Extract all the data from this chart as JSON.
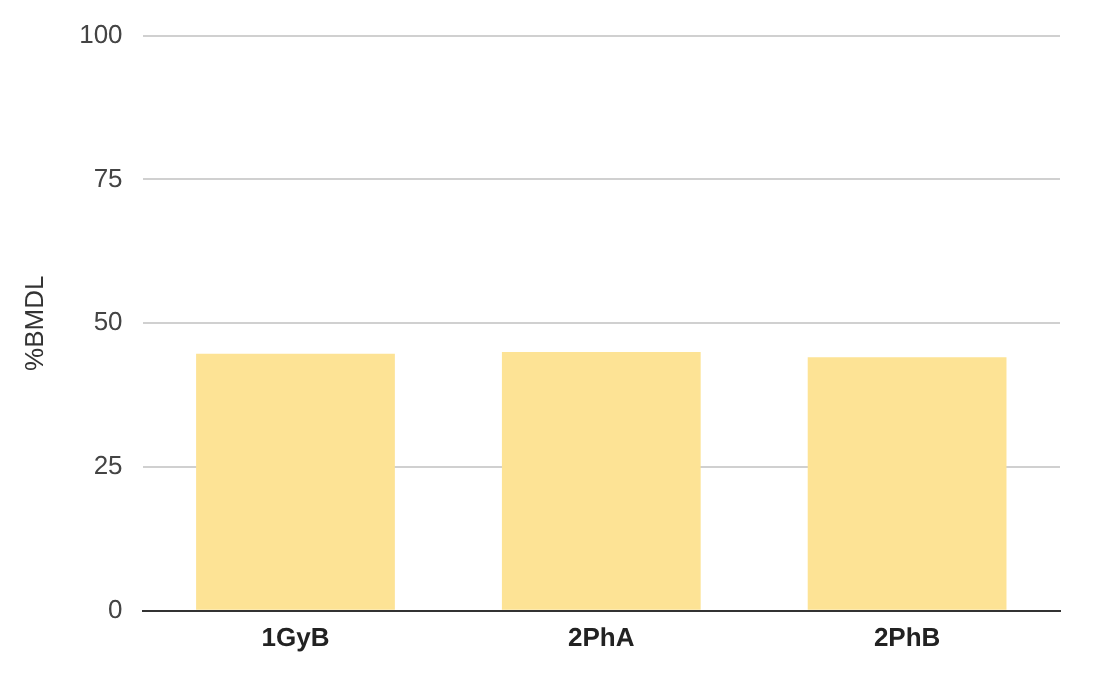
{
  "chart_data": {
    "type": "bar",
    "ylabel": "%BMDL",
    "categories": [
      "1GyB",
      "2PhA",
      "2PhB"
    ],
    "values": [
      44.7,
      45.0,
      44.1
    ],
    "color": "#fde395",
    "ylim": [
      0,
      100
    ],
    "yticks": [
      0,
      25,
      50,
      75,
      100
    ],
    "grid": "y",
    "legend": false
  }
}
